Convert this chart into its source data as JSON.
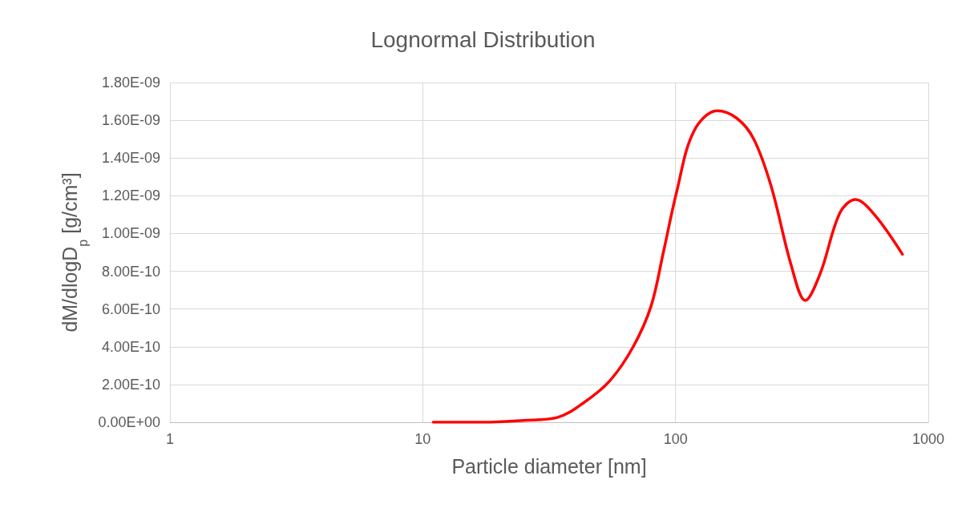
{
  "chart_data": {
    "type": "line",
    "title": "Lognormal Distribution",
    "xlabel": "Particle diameter [nm]",
    "ylabel": "dM/dlogD$_{p}$ [g/cm³]",
    "log": "x",
    "grid": true,
    "marker": "none",
    "line_style": "solid",
    "xlim": [
      1,
      1000
    ],
    "xticks": [
      1,
      10,
      100,
      1000
    ],
    "ylim": [
      0,
      1.8e-09
    ],
    "yticks": [
      {
        "value": 0,
        "label": "0.00E+00"
      },
      {
        "value": 2e-10,
        "label": "2.00E-10"
      },
      {
        "value": 4e-10,
        "label": "4.00E-10"
      },
      {
        "value": 6e-10,
        "label": "6.00E-10"
      },
      {
        "value": 8e-10,
        "label": "8.00E-10"
      },
      {
        "value": 1e-09,
        "label": "1.00E-09"
      },
      {
        "value": 1.2e-09,
        "label": "1.20E-09"
      },
      {
        "value": 1.4e-09,
        "label": "1.40E-09"
      },
      {
        "value": 1.6e-09,
        "label": "1.60E-09"
      },
      {
        "value": 1.8e-09,
        "label": "1.80E-09"
      }
    ],
    "series": [
      {
        "color": "#ff0000",
        "x": [
          11,
          17.4,
          25,
          34,
          43.5,
          55,
          68,
          80,
          89.5,
          101,
          118,
          146,
          175,
          204,
          239,
          287,
          326,
          374,
          447,
          515,
          612,
          790
        ],
        "values": [
          0,
          0,
          1e-11,
          2.5e-11,
          1.05e-10,
          2.2e-10,
          4e-10,
          6.15e-10,
          9e-10,
          1.22e-09,
          1.54e-09,
          1.65e-09,
          1.61e-09,
          1.5e-09,
          1.25e-09,
          8.3e-10,
          6.45e-10,
          7.9e-10,
          1.11e-09,
          1.18e-09,
          1.1e-09,
          8.9e-10
        ]
      }
    ]
  }
}
